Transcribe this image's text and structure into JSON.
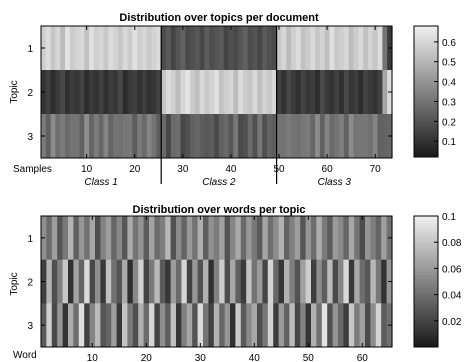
{
  "chart_data": [
    {
      "type": "heatmap",
      "title": "Distribution over topics per document",
      "ylabel": "Topic",
      "xlabel": "Samples",
      "rows": [
        "1",
        "2",
        "3"
      ],
      "x_ticks": [
        10,
        20,
        30,
        40,
        50,
        60,
        70
      ],
      "xlim": [
        0.5,
        73.5
      ],
      "groups": [
        {
          "label": "Class 1",
          "start": 1,
          "end": 25
        },
        {
          "label": "Class 2",
          "start": 26,
          "end": 49
        },
        {
          "label": "Class 3",
          "start": 50,
          "end": 73
        }
      ],
      "colorbar": {
        "range": [
          0.02,
          0.68
        ],
        "ticks": [
          "0.6",
          "0.5",
          "0.4",
          "0.3",
          "0.2",
          "0.1"
        ]
      },
      "colormap": "gray",
      "values": [
        [
          0.58,
          0.62,
          0.55,
          0.6,
          0.52,
          0.64,
          0.57,
          0.59,
          0.61,
          0.54,
          0.63,
          0.58,
          0.6,
          0.56,
          0.62,
          0.59,
          0.55,
          0.61,
          0.57,
          0.63,
          0.58,
          0.6,
          0.56,
          0.59,
          0.62,
          0.18,
          0.22,
          0.15,
          0.2,
          0.24,
          0.17,
          0.19,
          0.21,
          0.16,
          0.23,
          0.18,
          0.2,
          0.22,
          0.15,
          0.19,
          0.17,
          0.21,
          0.24,
          0.18,
          0.2,
          0.16,
          0.22,
          0.19,
          0.17,
          0.56,
          0.6,
          0.52,
          0.58,
          0.62,
          0.54,
          0.57,
          0.61,
          0.55,
          0.59,
          0.53,
          0.63,
          0.56,
          0.58,
          0.6,
          0.52,
          0.57,
          0.61,
          0.54,
          0.59,
          0.55,
          0.62,
          0.3,
          0.12
        ],
        [
          0.1,
          0.14,
          0.08,
          0.12,
          0.16,
          0.09,
          0.13,
          0.11,
          0.15,
          0.08,
          0.12,
          0.1,
          0.14,
          0.09,
          0.13,
          0.11,
          0.16,
          0.08,
          0.12,
          0.14,
          0.1,
          0.13,
          0.09,
          0.11,
          0.15,
          0.55,
          0.62,
          0.58,
          0.52,
          0.6,
          0.64,
          0.57,
          0.53,
          0.61,
          0.56,
          0.59,
          0.63,
          0.54,
          0.58,
          0.6,
          0.52,
          0.62,
          0.57,
          0.55,
          0.61,
          0.53,
          0.59,
          0.56,
          0.6,
          0.14,
          0.1,
          0.16,
          0.12,
          0.09,
          0.15,
          0.11,
          0.13,
          0.08,
          0.17,
          0.12,
          0.1,
          0.14,
          0.09,
          0.16,
          0.11,
          0.13,
          0.08,
          0.15,
          0.12,
          0.1,
          0.14,
          0.45,
          0.62
        ],
        [
          0.32,
          0.24,
          0.37,
          0.28,
          0.32,
          0.27,
          0.3,
          0.3,
          0.24,
          0.38,
          0.25,
          0.32,
          0.26,
          0.35,
          0.25,
          0.3,
          0.29,
          0.31,
          0.31,
          0.23,
          0.32,
          0.27,
          0.35,
          0.3,
          0.23,
          0.27,
          0.16,
          0.27,
          0.28,
          0.16,
          0.19,
          0.24,
          0.26,
          0.23,
          0.21,
          0.23,
          0.17,
          0.24,
          0.27,
          0.21,
          0.31,
          0.17,
          0.19,
          0.27,
          0.19,
          0.31,
          0.19,
          0.25,
          0.23,
          0.3,
          0.3,
          0.32,
          0.3,
          0.29,
          0.31,
          0.32,
          0.26,
          0.37,
          0.24,
          0.35,
          0.27,
          0.3,
          0.33,
          0.24,
          0.37,
          0.3,
          0.31,
          0.31,
          0.29,
          0.35,
          0.24,
          0.25,
          0.26
        ]
      ]
    },
    {
      "type": "heatmap",
      "title": "Distribution over words per topic",
      "ylabel": "Topic",
      "xlabel": "Word",
      "rows": [
        "1",
        "2",
        "3"
      ],
      "x_ticks": [
        10,
        20,
        30,
        40,
        50,
        60
      ],
      "xlim": [
        0.5,
        65.5
      ],
      "colorbar": {
        "range": [
          0.0,
          0.1
        ],
        "ticks": [
          "0.1",
          "0.08",
          "0.06",
          "0.04",
          "0.02"
        ]
      },
      "colormap": "gray",
      "values": [
        [
          0.055,
          0.038,
          0.062,
          0.028,
          0.045,
          0.072,
          0.033,
          0.058,
          0.041,
          0.066,
          0.025,
          0.049,
          0.061,
          0.036,
          0.052,
          0.029,
          0.068,
          0.043,
          0.057,
          0.031,
          0.064,
          0.039,
          0.047,
          0.074,
          0.026,
          0.053,
          0.035,
          0.06,
          0.042,
          0.07,
          0.032,
          0.056,
          0.046,
          0.063,
          0.027,
          0.05,
          0.067,
          0.037,
          0.059,
          0.044,
          0.03,
          0.065,
          0.04,
          0.054,
          0.071,
          0.034,
          0.048,
          0.062,
          0.028,
          0.057,
          0.039,
          0.069,
          0.045,
          0.031,
          0.06,
          0.052,
          0.036,
          0.066,
          0.043,
          0.024,
          0.058,
          0.047,
          0.035,
          0.063,
          0.041
        ],
        [
          0.018,
          0.072,
          0.025,
          0.048,
          0.081,
          0.012,
          0.064,
          0.035,
          0.09,
          0.022,
          0.055,
          0.015,
          0.078,
          0.041,
          0.028,
          0.068,
          0.01,
          0.052,
          0.085,
          0.02,
          0.045,
          0.075,
          0.03,
          0.014,
          0.061,
          0.038,
          0.088,
          0.019,
          0.058,
          0.026,
          0.07,
          0.011,
          0.049,
          0.083,
          0.024,
          0.066,
          0.033,
          0.016,
          0.079,
          0.042,
          0.06,
          0.021,
          0.087,
          0.036,
          0.013,
          0.071,
          0.047,
          0.027,
          0.063,
          0.084,
          0.017,
          0.054,
          0.032,
          0.076,
          0.023,
          0.05,
          0.089,
          0.015,
          0.067,
          0.039,
          0.029,
          0.073,
          0.044,
          0.012,
          0.058
        ],
        [
          0.03,
          0.085,
          0.022,
          0.058,
          0.012,
          0.068,
          0.04,
          0.092,
          0.018,
          0.05,
          0.075,
          0.028,
          0.035,
          0.062,
          0.015,
          0.08,
          0.045,
          0.025,
          0.07,
          0.038,
          0.088,
          0.02,
          0.055,
          0.032,
          0.078,
          0.014,
          0.048,
          0.065,
          0.027,
          0.09,
          0.042,
          0.019,
          0.072,
          0.036,
          0.058,
          0.011,
          0.083,
          0.03,
          0.052,
          0.066,
          0.024,
          0.044,
          0.086,
          0.016,
          0.06,
          0.034,
          0.076,
          0.021,
          0.049,
          0.013,
          0.07,
          0.041,
          0.094,
          0.026,
          0.057,
          0.037,
          0.017,
          0.081,
          0.046,
          0.063,
          0.023,
          0.054,
          0.087,
          0.031,
          0.04
        ]
      ]
    }
  ]
}
